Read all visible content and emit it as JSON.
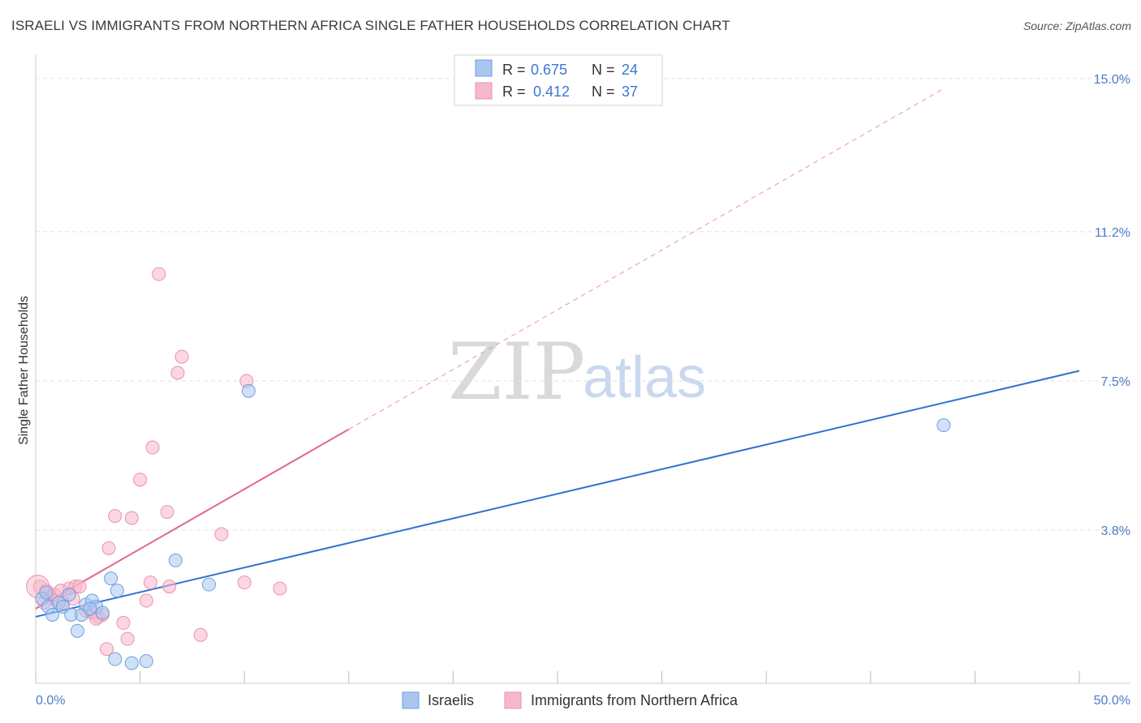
{
  "title": "ISRAELI VS IMMIGRANTS FROM NORTHERN AFRICA SINGLE FATHER HOUSEHOLDS CORRELATION CHART",
  "source": "Source: ZipAtlas.com",
  "watermark": {
    "zip": "ZIP",
    "atlas": "atlas"
  },
  "legend": {
    "rows": [
      {
        "r_label": "R = ",
        "r_value": "0.675",
        "n_label": "N = ",
        "n_value": "24",
        "color": "#a9c6f0"
      },
      {
        "r_label": "R = ",
        "r_value": "0.412",
        "n_label": "N = ",
        "n_value": "37",
        "color": "#f6b7ca"
      }
    ]
  },
  "bottom_legend": [
    {
      "label": "Israelis",
      "color": "#a9c6f0"
    },
    {
      "label": "Immigrants from Northern Africa",
      "color": "#f6b7ca"
    }
  ],
  "colors": {
    "israelis_fill": "#a9c6f0",
    "israelis_stroke": "#6f9ee0",
    "israelis_line": "#2f72d0",
    "africa_fill": "#f6b7ca",
    "africa_stroke": "#ef8fae",
    "africa_line": "#e26590",
    "tick_label": "#4a7cc9",
    "grid": "#e1e1e1"
  },
  "chart_data": {
    "type": "scatter",
    "title": "ISRAELI VS IMMIGRANTS FROM NORTHERN AFRICA SINGLE FATHER HOUSEHOLDS CORRELATION CHART",
    "xlabel": "",
    "ylabel": "Single Father Households",
    "xlim": [
      0,
      50
    ],
    "ylim": [
      0,
      15.4
    ],
    "x_tick_labels": [
      "0.0%",
      "50.0%"
    ],
    "y_ticks": [
      {
        "value": 3.8,
        "label": "3.8%"
      },
      {
        "value": 7.5,
        "label": "7.5%"
      },
      {
        "value": 11.2,
        "label": "11.2%"
      },
      {
        "value": 15.0,
        "label": "15.0%"
      }
    ],
    "series": [
      {
        "name": "Israelis",
        "r": 0.675,
        "n": 24,
        "trend": {
          "x0": 0,
          "y0": 1.65,
          "x1": 50,
          "y1": 7.75,
          "style": "solid"
        },
        "points": [
          [
            0.3,
            2.1
          ],
          [
            0.6,
            1.9
          ],
          [
            0.8,
            1.7
          ],
          [
            1.1,
            2.0
          ],
          [
            1.3,
            1.9
          ],
          [
            1.6,
            2.2
          ],
          [
            1.7,
            1.7
          ],
          [
            2.0,
            1.3
          ],
          [
            2.2,
            1.7
          ],
          [
            2.4,
            1.95
          ],
          [
            2.7,
            2.05
          ],
          [
            2.9,
            1.9
          ],
          [
            3.2,
            1.75
          ],
          [
            3.6,
            2.6
          ],
          [
            3.9,
            2.3
          ],
          [
            3.8,
            0.6
          ],
          [
            4.6,
            0.5
          ],
          [
            5.3,
            0.55
          ],
          [
            6.7,
            3.05
          ],
          [
            8.3,
            2.45
          ],
          [
            10.2,
            7.25
          ],
          [
            43.5,
            6.4
          ],
          [
            0.5,
            2.25
          ],
          [
            2.6,
            1.85
          ]
        ]
      },
      {
        "name": "Immigrants from Northern Africa",
        "r": 0.412,
        "n": 37,
        "trend": {
          "x0": 0,
          "y0": 1.85,
          "x1": 15.0,
          "y1": 6.3,
          "style": "solid"
        },
        "trend_extension": {
          "x0": 15.0,
          "y0": 6.3,
          "x1": 43.5,
          "y1": 14.75,
          "style": "dashed"
        },
        "points": [
          [
            0.2,
            2.4
          ],
          [
            0.5,
            2.3
          ],
          [
            0.7,
            2.15
          ],
          [
            1.0,
            2.05
          ],
          [
            1.3,
            2.0
          ],
          [
            1.6,
            2.35
          ],
          [
            1.9,
            2.4
          ],
          [
            2.1,
            2.4
          ],
          [
            2.4,
            1.8
          ],
          [
            2.7,
            1.75
          ],
          [
            3.0,
            1.65
          ],
          [
            3.2,
            1.7
          ],
          [
            3.5,
            3.35
          ],
          [
            3.8,
            4.15
          ],
          [
            4.2,
            1.5
          ],
          [
            4.4,
            1.1
          ],
          [
            4.6,
            4.1
          ],
          [
            5.0,
            5.05
          ],
          [
            5.3,
            2.05
          ],
          [
            5.5,
            2.5
          ],
          [
            5.6,
            5.85
          ],
          [
            5.9,
            10.15
          ],
          [
            6.3,
            4.25
          ],
          [
            6.4,
            2.4
          ],
          [
            6.8,
            7.7
          ],
          [
            7.0,
            8.1
          ],
          [
            7.9,
            1.2
          ],
          [
            8.9,
            3.7
          ],
          [
            10.0,
            2.5
          ],
          [
            10.1,
            7.5
          ],
          [
            11.7,
            2.35
          ],
          [
            0.9,
            2.2
          ],
          [
            1.8,
            2.1
          ],
          [
            2.9,
            1.6
          ],
          [
            3.4,
            0.85
          ],
          [
            1.2,
            2.3
          ],
          [
            0.4,
            2.0
          ]
        ]
      }
    ]
  }
}
